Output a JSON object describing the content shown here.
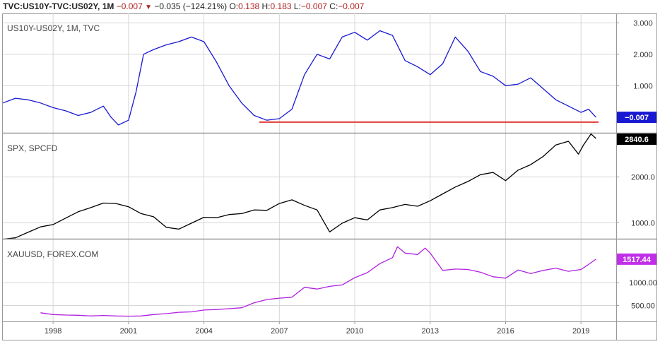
{
  "header": {
    "symbol": "TVC:US10Y-TVC:US02Y, 1M",
    "change": "−0.007",
    "change_pct": "−0.035 (−124.21%)",
    "o_label": "O:",
    "o_value": "0.138",
    "h_label": "H:",
    "h_value": "0.183",
    "l_label": "L:",
    "l_value": "−0.007",
    "c_label": "C:",
    "c_value": "−0.007"
  },
  "chart_data": [
    {
      "type": "line",
      "title": "US10Y-US02Y, 1M, TVC",
      "color": "#1919d2",
      "ylim": [
        -0.5,
        3.3
      ],
      "yticks": [
        1.0,
        2.0,
        3.0
      ],
      "ytick_labels": [
        "1.000",
        "2.000",
        "3.000"
      ],
      "last_value_label": "−0.007",
      "last_value": -0.007,
      "badge_color": "#1919d2",
      "reference_line": {
        "y": -0.16,
        "x_start": 2006.2,
        "x_end": 2019.7,
        "color": "#e53935"
      },
      "x": [
        1996.0,
        1996.5,
        1997.0,
        1997.5,
        1998.0,
        1998.5,
        1999.0,
        1999.5,
        2000.0,
        2000.3,
        2000.6,
        2001.0,
        2001.3,
        2001.6,
        2002.0,
        2002.5,
        2003.0,
        2003.5,
        2004.0,
        2004.5,
        2005.0,
        2005.5,
        2006.0,
        2006.5,
        2007.0,
        2007.5,
        2008.0,
        2008.5,
        2009.0,
        2009.5,
        2010.0,
        2010.5,
        2011.0,
        2011.5,
        2012.0,
        2012.5,
        2013.0,
        2013.5,
        2014.0,
        2014.5,
        2015.0,
        2015.5,
        2016.0,
        2016.5,
        2017.0,
        2017.5,
        2018.0,
        2018.5,
        2019.0,
        2019.3,
        2019.6
      ],
      "y": [
        0.45,
        0.6,
        0.55,
        0.45,
        0.3,
        0.2,
        0.05,
        0.15,
        0.35,
        0.0,
        -0.25,
        -0.1,
        0.8,
        2.0,
        2.15,
        2.3,
        2.4,
        2.55,
        2.4,
        1.75,
        1.0,
        0.45,
        0.05,
        -0.1,
        -0.05,
        0.25,
        1.35,
        2.0,
        1.85,
        2.55,
        2.7,
        2.45,
        2.75,
        2.6,
        1.8,
        1.6,
        1.35,
        1.7,
        2.55,
        2.1,
        1.45,
        1.3,
        1.0,
        1.05,
        1.25,
        0.9,
        0.55,
        0.35,
        0.15,
        0.25,
        -0.007
      ]
    },
    {
      "type": "line",
      "title": "SPX, SPCFD",
      "color": "#000000",
      "ylim": [
        650,
        2950
      ],
      "yticks": [
        1000.0,
        2000.0
      ],
      "ytick_labels": [
        "1000.0",
        "2000.0"
      ],
      "last_value_label": "2840.6",
      "last_value": 2840.6,
      "badge_color": "#000000",
      "x": [
        1996.0,
        1996.5,
        1997.0,
        1997.5,
        1998.0,
        1998.5,
        1999.0,
        1999.5,
        2000.0,
        2000.5,
        2001.0,
        2001.5,
        2002.0,
        2002.5,
        2003.0,
        2003.5,
        2004.0,
        2004.5,
        2005.0,
        2005.5,
        2006.0,
        2006.5,
        2007.0,
        2007.5,
        2008.0,
        2008.5,
        2009.0,
        2009.5,
        2010.0,
        2010.5,
        2011.0,
        2011.5,
        2012.0,
        2012.5,
        2013.0,
        2013.5,
        2014.0,
        2014.5,
        2015.0,
        2015.5,
        2016.0,
        2016.5,
        2017.0,
        2017.5,
        2018.0,
        2018.5,
        2018.9,
        2019.1,
        2019.4,
        2019.6
      ],
      "y": [
        640,
        670,
        790,
        910,
        960,
        1100,
        1240,
        1330,
        1430,
        1420,
        1350,
        1200,
        1130,
        900,
        860,
        990,
        1120,
        1110,
        1180,
        1200,
        1280,
        1270,
        1420,
        1500,
        1380,
        1280,
        800,
        990,
        1110,
        1060,
        1280,
        1330,
        1400,
        1360,
        1480,
        1630,
        1780,
        1900,
        2050,
        2100,
        1920,
        2150,
        2270,
        2450,
        2700,
        2780,
        2500,
        2700,
        2940,
        2840.6
      ]
    },
    {
      "type": "line",
      "title": "XAUUSD, FOREX.COM",
      "color": "#b020e0",
      "ylim": [
        150,
        1950
      ],
      "yticks": [
        500.0,
        1000.0
      ],
      "ytick_labels": [
        "500.00",
        "1000.00"
      ],
      "last_value_label": "1517.44",
      "last_value": 1517.44,
      "badge_color": "#c12fe8",
      "x": [
        1997.5,
        1998.0,
        1998.5,
        1999.0,
        1999.5,
        2000.0,
        2000.5,
        2001.0,
        2001.5,
        2002.0,
        2002.5,
        2003.0,
        2003.5,
        2004.0,
        2004.5,
        2005.0,
        2005.5,
        2006.0,
        2006.5,
        2007.0,
        2007.5,
        2008.0,
        2008.5,
        2009.0,
        2009.5,
        2010.0,
        2010.5,
        2011.0,
        2011.5,
        2011.7,
        2012.0,
        2012.5,
        2012.8,
        2013.0,
        2013.5,
        2014.0,
        2014.5,
        2015.0,
        2015.5,
        2016.0,
        2016.5,
        2017.0,
        2017.5,
        2018.0,
        2018.5,
        2019.0,
        2019.3,
        2019.6
      ],
      "y": [
        340,
        300,
        290,
        285,
        270,
        280,
        270,
        265,
        270,
        300,
        320,
        350,
        360,
        400,
        410,
        430,
        450,
        560,
        630,
        660,
        680,
        900,
        860,
        920,
        950,
        1110,
        1220,
        1420,
        1550,
        1790,
        1650,
        1620,
        1760,
        1650,
        1270,
        1300,
        1290,
        1230,
        1130,
        1100,
        1280,
        1200,
        1270,
        1320,
        1250,
        1290,
        1400,
        1517.44
      ]
    }
  ],
  "x_axis": {
    "xlim": [
      1996.0,
      2020.4
    ],
    "ticks": [
      1998,
      2001,
      2004,
      2007,
      2010,
      2013,
      2016,
      2019
    ],
    "tick_labels": [
      "1998",
      "2001",
      "2004",
      "2007",
      "2010",
      "2013",
      "2016",
      "2019"
    ]
  },
  "colors": {
    "grid": "#d6d6d6",
    "axis": "#9a9a9a",
    "background": "#ffffff"
  }
}
